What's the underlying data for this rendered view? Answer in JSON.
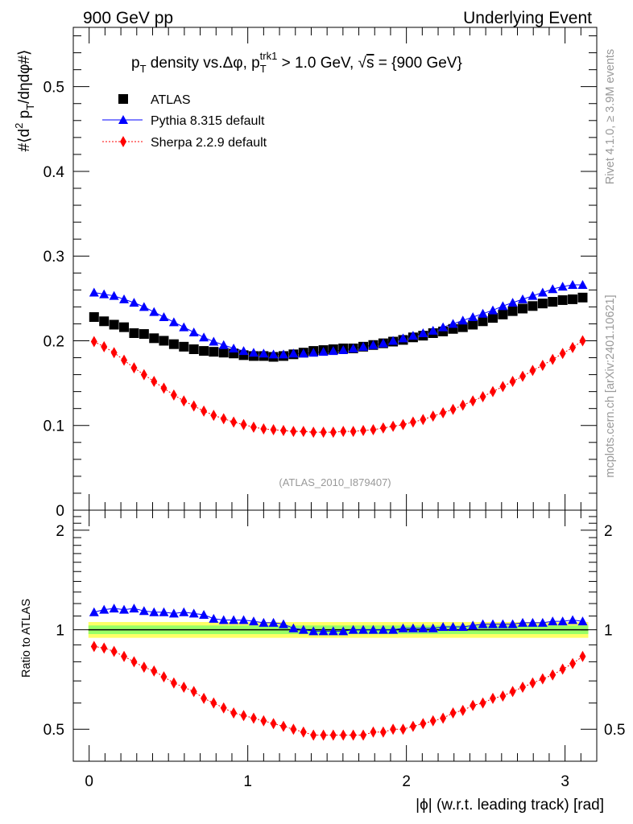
{
  "header": {
    "left": "900 GeV pp",
    "right": "Underlying Event"
  },
  "side": {
    "rivet": "Rivet 4.1.0, ≥ 3.9M events",
    "mcplots": "mcplots.cern.ch [arXiv:2401.10621]"
  },
  "colors": {
    "atlas": "#000000",
    "pythia": "#0000ff",
    "sherpa": "#ff0000",
    "band_inner": "#99ff66",
    "band_outer": "#ffff66",
    "watermark": "#999999"
  },
  "chart_data": [
    {
      "type": "scatter",
      "panel": "main",
      "title": "p_T density vs.Δφ, p_T^trk1 > 1.0 GeV, √s = {900 GeV}",
      "title_parts": {
        "a": "p",
        "a_sub": "T",
        "b": " density vs.Δφ, p",
        "b_sub": "T",
        "b_sup": "trk1",
        "c": " > 1.0 GeV, ",
        "sqrt": "√",
        "s": "s",
        "d": " = {900 GeV}"
      },
      "ylabel": "#⟨d² p_T/dηdφ#⟩",
      "ylabel_parts": {
        "a": "#⟨d",
        "sup": "2",
        "b": " p",
        "sub": "T",
        "c": "/dηdφ#⟩"
      },
      "xlim": [
        -0.1,
        3.2
      ],
      "ylim": [
        0,
        0.57
      ],
      "y_ticks": [
        0,
        0.1,
        0.2,
        0.3,
        0.4,
        0.5
      ],
      "y_tick_labels": [
        "0",
        "0.1",
        "0.2",
        "0.3",
        "0.4",
        "0.5"
      ],
      "watermark": "(ATLAS_2010_I879407)",
      "legend": [
        "ATLAS",
        "Pythia 8.315 default",
        "Sherpa 2.2.9 default"
      ],
      "x": [
        0.031,
        0.094,
        0.157,
        0.22,
        0.283,
        0.346,
        0.409,
        0.471,
        0.534,
        0.597,
        0.66,
        0.723,
        0.785,
        0.848,
        0.911,
        0.974,
        1.037,
        1.1,
        1.162,
        1.225,
        1.288,
        1.351,
        1.414,
        1.477,
        1.539,
        1.602,
        1.665,
        1.728,
        1.791,
        1.854,
        1.916,
        1.979,
        2.042,
        2.105,
        2.168,
        2.231,
        2.294,
        2.356,
        2.419,
        2.482,
        2.545,
        2.608,
        2.67,
        2.733,
        2.796,
        2.859,
        2.922,
        2.985,
        3.048,
        3.111
      ],
      "series": [
        {
          "name": "ATLAS",
          "values": [
            0.228,
            0.223,
            0.219,
            0.216,
            0.209,
            0.208,
            0.203,
            0.2,
            0.196,
            0.193,
            0.19,
            0.188,
            0.187,
            0.186,
            0.185,
            0.183,
            0.182,
            0.182,
            0.181,
            0.182,
            0.184,
            0.186,
            0.188,
            0.189,
            0.19,
            0.191,
            0.191,
            0.193,
            0.195,
            0.197,
            0.199,
            0.201,
            0.204,
            0.206,
            0.209,
            0.211,
            0.214,
            0.216,
            0.219,
            0.223,
            0.227,
            0.231,
            0.235,
            0.238,
            0.241,
            0.244,
            0.246,
            0.248,
            0.249,
            0.251
          ]
        },
        {
          "name": "Pythia 8.315 default",
          "values": [
            0.257,
            0.255,
            0.253,
            0.249,
            0.245,
            0.24,
            0.234,
            0.228,
            0.222,
            0.216,
            0.21,
            0.204,
            0.199,
            0.195,
            0.191,
            0.188,
            0.186,
            0.185,
            0.184,
            0.184,
            0.185,
            0.185,
            0.186,
            0.187,
            0.188,
            0.189,
            0.191,
            0.193,
            0.195,
            0.197,
            0.2,
            0.203,
            0.206,
            0.209,
            0.212,
            0.216,
            0.22,
            0.224,
            0.228,
            0.232,
            0.236,
            0.241,
            0.245,
            0.249,
            0.253,
            0.257,
            0.261,
            0.264,
            0.266,
            0.266
          ]
        },
        {
          "name": "Sherpa 2.2.9 default",
          "values": [
            0.199,
            0.193,
            0.186,
            0.177,
            0.168,
            0.16,
            0.152,
            0.144,
            0.136,
            0.129,
            0.123,
            0.117,
            0.112,
            0.108,
            0.104,
            0.101,
            0.098,
            0.096,
            0.095,
            0.094,
            0.093,
            0.093,
            0.092,
            0.092,
            0.092,
            0.093,
            0.093,
            0.094,
            0.095,
            0.097,
            0.099,
            0.101,
            0.104,
            0.107,
            0.111,
            0.115,
            0.119,
            0.124,
            0.129,
            0.134,
            0.14,
            0.146,
            0.152,
            0.158,
            0.165,
            0.171,
            0.178,
            0.185,
            0.192,
            0.2
          ]
        }
      ]
    },
    {
      "type": "scatter",
      "panel": "ratio",
      "ylabel": "Ratio to ATLAS",
      "xlabel": "|ϕ| (w.r.t. leading track) [rad]",
      "xlim": [
        -0.1,
        3.2
      ],
      "ylim": [
        0.4,
        2.3
      ],
      "x_ticks": [
        0,
        1,
        2,
        3
      ],
      "x_tick_labels": [
        "0",
        "1",
        "2",
        "3"
      ],
      "y_ticks": [
        0.5,
        1,
        2
      ],
      "y_tick_labels": [
        "0.5",
        "1",
        "2"
      ],
      "band_inner_halfwidth": 0.03,
      "band_outer_halfwidth": 0.055,
      "reference": 1,
      "x": [
        0.031,
        0.094,
        0.157,
        0.22,
        0.283,
        0.346,
        0.409,
        0.471,
        0.534,
        0.597,
        0.66,
        0.723,
        0.785,
        0.848,
        0.911,
        0.974,
        1.037,
        1.1,
        1.162,
        1.225,
        1.288,
        1.351,
        1.414,
        1.477,
        1.539,
        1.602,
        1.665,
        1.728,
        1.791,
        1.854,
        1.916,
        1.979,
        2.042,
        2.105,
        2.168,
        2.231,
        2.294,
        2.356,
        2.419,
        2.482,
        2.545,
        2.608,
        2.67,
        2.733,
        2.796,
        2.859,
        2.922,
        2.985,
        3.048,
        3.111
      ],
      "series": [
        {
          "name": "Pythia 8.315 default",
          "values": [
            1.13,
            1.15,
            1.16,
            1.15,
            1.16,
            1.14,
            1.13,
            1.13,
            1.12,
            1.13,
            1.12,
            1.11,
            1.08,
            1.07,
            1.07,
            1.07,
            1.06,
            1.05,
            1.05,
            1.04,
            1.01,
            1.0,
            0.99,
            0.99,
            0.99,
            0.99,
            1.0,
            1.0,
            1.0,
            1.0,
            1.0,
            1.01,
            1.01,
            1.01,
            1.01,
            1.02,
            1.02,
            1.02,
            1.03,
            1.04,
            1.04,
            1.04,
            1.04,
            1.05,
            1.05,
            1.05,
            1.06,
            1.06,
            1.07,
            1.06
          ]
        },
        {
          "name": "Sherpa 2.2.9 default",
          "values": [
            0.89,
            0.88,
            0.86,
            0.83,
            0.8,
            0.77,
            0.75,
            0.72,
            0.69,
            0.67,
            0.65,
            0.62,
            0.6,
            0.58,
            0.56,
            0.55,
            0.54,
            0.53,
            0.52,
            0.51,
            0.5,
            0.49,
            0.48,
            0.48,
            0.48,
            0.48,
            0.48,
            0.48,
            0.49,
            0.49,
            0.5,
            0.5,
            0.51,
            0.52,
            0.53,
            0.54,
            0.56,
            0.57,
            0.59,
            0.6,
            0.62,
            0.63,
            0.65,
            0.67,
            0.69,
            0.71,
            0.73,
            0.76,
            0.79,
            0.83
          ]
        }
      ]
    }
  ]
}
